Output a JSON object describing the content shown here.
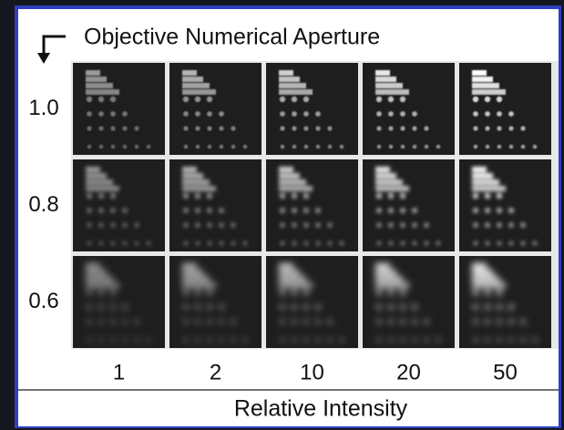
{
  "header": {
    "title": "Objective Numerical Aperture"
  },
  "rows": [
    {
      "label": "1.0"
    },
    {
      "label": "0.8"
    },
    {
      "label": "0.6"
    }
  ],
  "columns": [
    {
      "label": "1"
    },
    {
      "label": "2"
    },
    {
      "label": "10"
    },
    {
      "label": "20"
    },
    {
      "label": "50"
    }
  ],
  "footer": {
    "axis_label": "Relative Intensity"
  }
}
